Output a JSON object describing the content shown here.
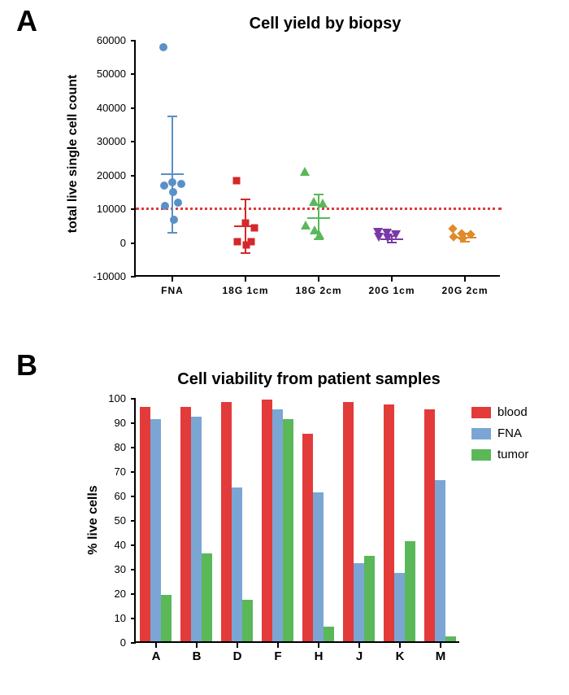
{
  "panelA": {
    "label": "A",
    "title": "Cell yield by biopsy",
    "ylabel": "total live single cell count",
    "categories": [
      "FNA",
      "18G 1cm",
      "18G 2cm",
      "20G 1cm",
      "20G 2cm"
    ],
    "ylim": [
      -10000,
      60000
    ],
    "yticks": [
      -10000,
      0,
      10000,
      20000,
      30000,
      40000,
      50000,
      60000
    ],
    "ref_line_y": 10500,
    "ref_line_color": "#e03a3a",
    "background_color": "#ffffff",
    "series": [
      {
        "cat": 0,
        "color": "#5a90c8",
        "marker": "circle",
        "points": [
          58000,
          18000,
          17500,
          17000,
          15000,
          12000,
          11000,
          7000
        ],
        "mean": 20500,
        "sd_upper": 37500,
        "sd_lower": 3000
      },
      {
        "cat": 1,
        "color": "#d4282a",
        "marker": "square",
        "points": [
          18500,
          6000,
          4500,
          500,
          -500,
          500
        ],
        "mean": 5000,
        "sd_upper": 13000,
        "sd_lower": -3000
      },
      {
        "cat": 2,
        "color": "#5ab859",
        "marker": "triangle",
        "points": [
          20000,
          11000,
          10500,
          4000,
          2500,
          1000
        ],
        "mean": 7500,
        "sd_upper": 14500,
        "sd_lower": 1000
      },
      {
        "cat": 3,
        "color": "#7a3aa6",
        "marker": "tri-down",
        "points": [
          1800,
          1500,
          1200,
          500,
          200
        ],
        "mean": 1000,
        "sd_upper": 2000,
        "sd_lower": 200
      },
      {
        "cat": 4,
        "color": "#e08a28",
        "marker": "diamond",
        "points": [
          3200,
          1800,
          1500,
          800,
          500
        ],
        "mean": 1500,
        "sd_upper": 2800,
        "sd_lower": 300
      }
    ]
  },
  "panelB": {
    "label": "B",
    "title": "Cell viability from patient samples",
    "ylabel": "% live cells",
    "categories": [
      "A",
      "B",
      "D",
      "F",
      "H",
      "J",
      "K",
      "M"
    ],
    "ylim": [
      0,
      100
    ],
    "yticks": [
      0,
      10,
      20,
      30,
      40,
      50,
      60,
      70,
      80,
      90,
      100
    ],
    "background_color": "#ffffff",
    "legend": [
      {
        "label": "blood",
        "color": "#e33a3a"
      },
      {
        "label": "FNA",
        "color": "#7ba6d4"
      },
      {
        "label": "tumor",
        "color": "#5ab859"
      }
    ],
    "groups": [
      {
        "cat": "A",
        "blood": 96,
        "fna": 91,
        "tumor": 19
      },
      {
        "cat": "B",
        "blood": 96,
        "fna": 92,
        "tumor": 36
      },
      {
        "cat": "D",
        "blood": 98,
        "fna": 63,
        "tumor": 17
      },
      {
        "cat": "F",
        "blood": 99,
        "fna": 95,
        "tumor": 91
      },
      {
        "cat": "H",
        "blood": 85,
        "fna": 61,
        "tumor": 6
      },
      {
        "cat": "J",
        "blood": 98,
        "fna": 32,
        "tumor": 35
      },
      {
        "cat": "K",
        "blood": 97,
        "fna": 28,
        "tumor": 41
      },
      {
        "cat": "M",
        "blood": 95,
        "fna": 66,
        "tumor": 2
      }
    ],
    "bar_colors": {
      "blood": "#e33a3a",
      "fna": "#7ba6d4",
      "tumor": "#5ab859"
    }
  }
}
